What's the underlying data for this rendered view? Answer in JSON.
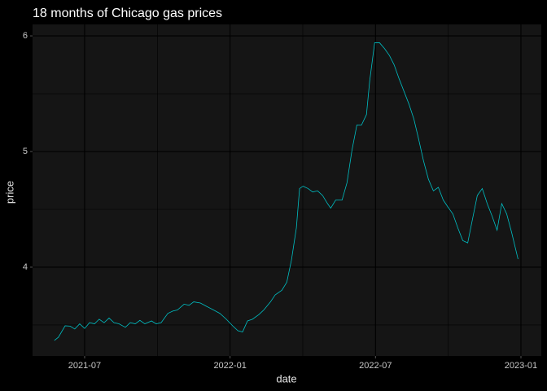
{
  "chart_data": {
    "type": "line",
    "title": "18 months of Chicago gas prices",
    "x_label": "date",
    "y_label": "price",
    "color": "#00bfc4",
    "grid": true,
    "x": [
      2021.396,
      2021.41,
      2021.433,
      2021.45,
      2021.466,
      2021.483,
      2021.5,
      2021.517,
      2021.534,
      2021.55,
      2021.567,
      2021.584,
      2021.601,
      2021.618,
      2021.64,
      2021.657,
      2021.674,
      2021.69,
      2021.707,
      2021.73,
      2021.746,
      2021.763,
      2021.786,
      2021.803,
      2021.819,
      2021.842,
      2021.859,
      2021.875,
      2021.898,
      2021.92,
      2021.943,
      2021.965,
      2021.987,
      2022.01,
      2022.027,
      2022.043,
      2022.06,
      2022.077,
      2022.099,
      2022.116,
      2022.139,
      2022.155,
      2022.178,
      2022.195,
      2022.211,
      2022.228,
      2022.239,
      2022.251,
      2022.268,
      2022.284,
      2022.301,
      2022.318,
      2022.335,
      2022.346,
      2022.363,
      2022.385,
      2022.402,
      2022.419,
      2022.436,
      2022.452,
      2022.469,
      2022.48,
      2022.497,
      2022.514,
      2022.531,
      2022.548,
      2022.564,
      2022.581,
      2022.598,
      2022.615,
      2022.632,
      2022.648,
      2022.665,
      2022.682,
      2022.699,
      2022.716,
      2022.733,
      2022.749,
      2022.766,
      2022.783,
      2022.8,
      2022.817,
      2022.833,
      2022.85,
      2022.867,
      2022.884,
      2022.901,
      2022.918,
      2022.934,
      2022.951,
      2022.968,
      2022.99
    ],
    "values": [
      3.366,
      3.394,
      3.493,
      3.49,
      3.465,
      3.51,
      3.47,
      3.52,
      3.51,
      3.55,
      3.52,
      3.56,
      3.52,
      3.51,
      3.48,
      3.52,
      3.51,
      3.54,
      3.51,
      3.535,
      3.51,
      3.52,
      3.6,
      3.62,
      3.63,
      3.68,
      3.67,
      3.7,
      3.69,
      3.66,
      3.63,
      3.6,
      3.55,
      3.49,
      3.45,
      3.44,
      3.535,
      3.55,
      3.59,
      3.63,
      3.7,
      3.76,
      3.8,
      3.87,
      4.06,
      4.34,
      4.68,
      4.7,
      4.68,
      4.65,
      4.66,
      4.62,
      4.55,
      4.51,
      4.58,
      4.58,
      4.73,
      5.01,
      5.23,
      5.23,
      5.32,
      5.61,
      5.94,
      5.94,
      5.89,
      5.83,
      5.75,
      5.63,
      5.52,
      5.41,
      5.28,
      5.11,
      4.92,
      4.76,
      4.66,
      4.69,
      4.58,
      4.52,
      4.46,
      4.34,
      4.23,
      4.21,
      4.41,
      4.62,
      4.68,
      4.55,
      4.44,
      4.32,
      4.55,
      4.46,
      4.3,
      4.07
    ],
    "xlim": [
      2021.321,
      2023.07
    ],
    "xticks": [
      {
        "value": 2021.5,
        "label": "2021-07"
      },
      {
        "value": 2022.0,
        "label": "2022-01"
      },
      {
        "value": 2022.5,
        "label": "2022-07"
      },
      {
        "value": 2023.0,
        "label": "2023-01"
      }
    ],
    "minor_xticks": [
      2021.75,
      2022.25,
      2022.75
    ],
    "ylim": [
      3.232,
      6.099
    ],
    "yticks": [
      4,
      5,
      6
    ],
    "minor_yticks": [
      3.5,
      4.5,
      5.5
    ]
  }
}
